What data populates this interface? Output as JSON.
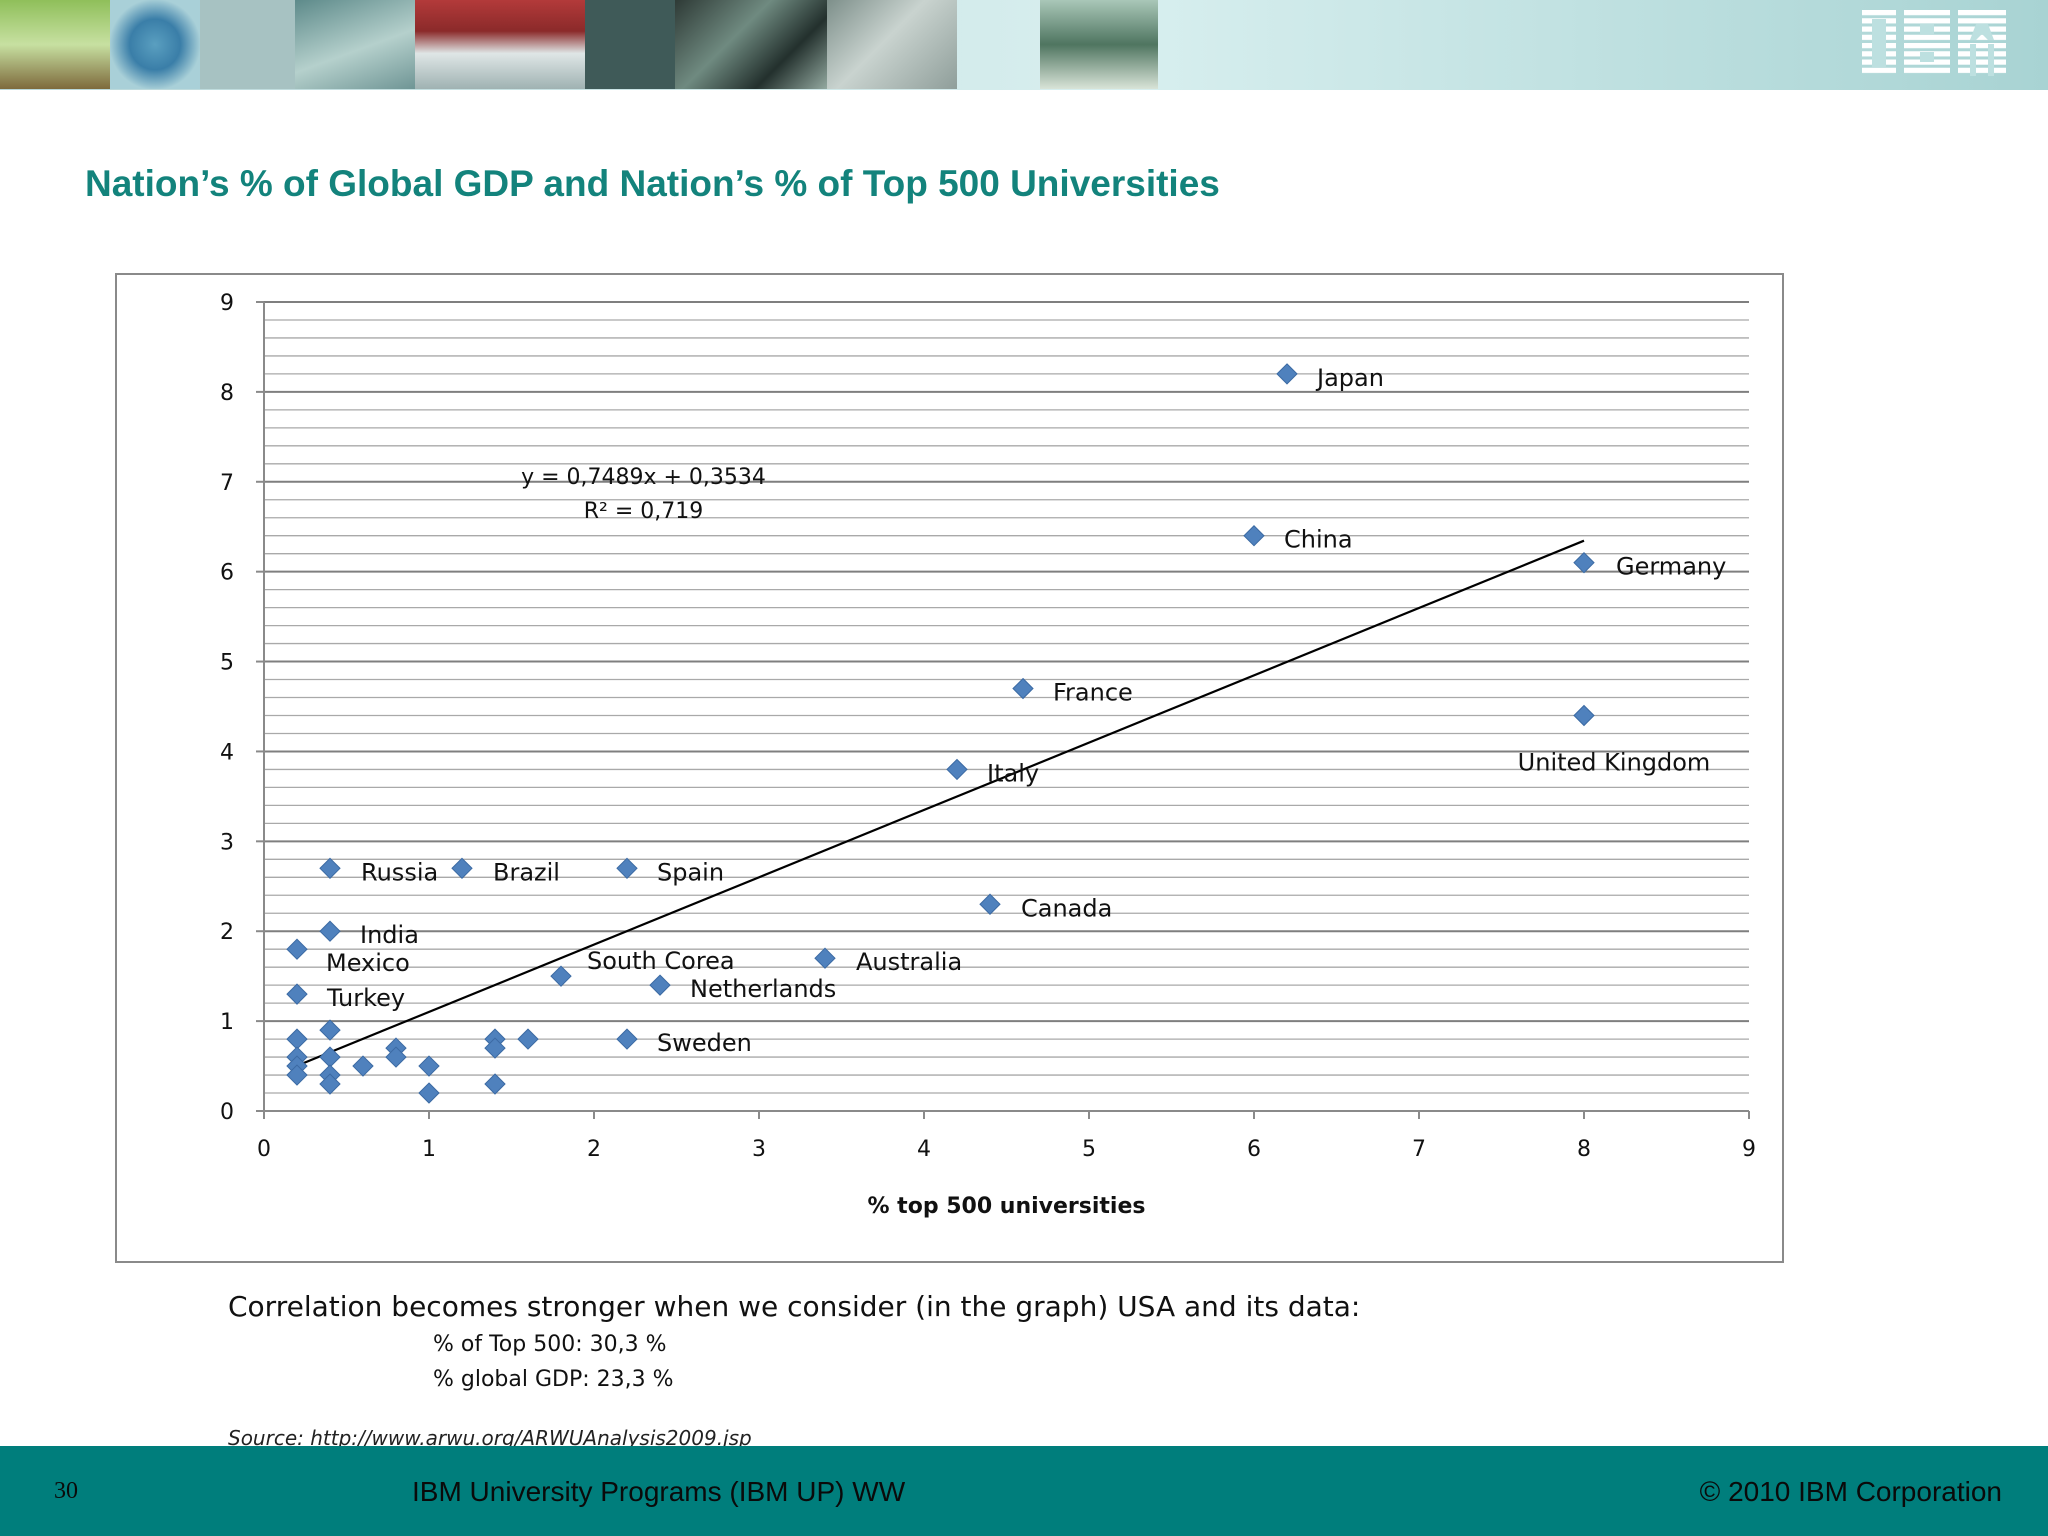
{
  "header": {
    "brand_logo": "IBM",
    "photo_strip": [
      "tree-photo",
      "globe-diagram-photo",
      "cables-photo",
      "house-photo",
      "dark-panel-photo",
      "city-aerial-photo",
      "circuit-map-photo",
      "hand-device-photo"
    ]
  },
  "slide": {
    "title": "Nation’s % of Global GDP and Nation’s % of Top 500 Universities"
  },
  "chart_data": {
    "type": "scatter",
    "xlabel": "% top 500 universities",
    "ylabel": "",
    "xlim": [
      0,
      9
    ],
    "ylim": [
      0,
      9
    ],
    "x_ticks": [
      "0",
      "1",
      "2",
      "3",
      "4",
      "5",
      "6",
      "7",
      "8",
      "9"
    ],
    "y_ticks": [
      "0",
      "1",
      "2",
      "3",
      "4",
      "5",
      "6",
      "7",
      "8",
      "9"
    ],
    "grid": true,
    "minor_grid_step": 0.2,
    "marker_color": "#4f81bd",
    "trendline": {
      "slope": 0.7489,
      "intercept": 0.3534,
      "x_range": [
        0.2,
        8
      ],
      "equation_label": "y = 0,7489x + 0,3534",
      "r2_label": "R² = 0,719"
    },
    "points": [
      {
        "x": 6.2,
        "y": 8.2,
        "label": "Japan"
      },
      {
        "x": 6.0,
        "y": 6.4,
        "label": "China"
      },
      {
        "x": 8.0,
        "y": 6.1,
        "label": "Germany"
      },
      {
        "x": 4.6,
        "y": 4.7,
        "label": "France"
      },
      {
        "x": 8.0,
        "y": 4.4,
        "label": "United Kingdom"
      },
      {
        "x": 4.2,
        "y": 3.8,
        "label": "Italy"
      },
      {
        "x": 0.4,
        "y": 2.7,
        "label": "Russia"
      },
      {
        "x": 1.2,
        "y": 2.7,
        "label": "Brazil"
      },
      {
        "x": 2.2,
        "y": 2.7,
        "label": "Spain"
      },
      {
        "x": 4.4,
        "y": 2.3,
        "label": "Canada"
      },
      {
        "x": 0.4,
        "y": 2.0,
        "label": "India"
      },
      {
        "x": 0.2,
        "y": 1.8,
        "label": "Mexico"
      },
      {
        "x": 1.8,
        "y": 1.5,
        "label": "South Corea"
      },
      {
        "x": 3.4,
        "y": 1.7,
        "label": "Australia"
      },
      {
        "x": 2.4,
        "y": 1.4,
        "label": "Netherlands"
      },
      {
        "x": 0.2,
        "y": 1.3,
        "label": "Turkey"
      },
      {
        "x": 2.2,
        "y": 0.8,
        "label": "Sweden"
      },
      {
        "x": 0.2,
        "y": 0.8
      },
      {
        "x": 0.2,
        "y": 0.6
      },
      {
        "x": 0.2,
        "y": 0.5
      },
      {
        "x": 0.2,
        "y": 0.4
      },
      {
        "x": 0.4,
        "y": 0.9
      },
      {
        "x": 0.4,
        "y": 0.6
      },
      {
        "x": 0.4,
        "y": 0.4
      },
      {
        "x": 0.4,
        "y": 0.3
      },
      {
        "x": 0.6,
        "y": 0.5
      },
      {
        "x": 0.8,
        "y": 0.7
      },
      {
        "x": 0.8,
        "y": 0.6
      },
      {
        "x": 1.0,
        "y": 0.5
      },
      {
        "x": 1.0,
        "y": 0.2
      },
      {
        "x": 1.4,
        "y": 0.8
      },
      {
        "x": 1.4,
        "y": 0.7
      },
      {
        "x": 1.4,
        "y": 0.3
      },
      {
        "x": 1.6,
        "y": 0.8
      }
    ]
  },
  "notes": {
    "main": "Correlation becomes stronger when we consider (in the graph) USA and its data:",
    "top500": "% of Top 500: 30,3 %",
    "gdp": "% global GDP: 23,3 %",
    "source": "Source: http://www.arwu.org/ARWUAnalysis2009.jsp"
  },
  "footer": {
    "page_number": "30",
    "program": "IBM University Programs (IBM UP) WW",
    "copyright": "© 2010 IBM Corporation"
  },
  "colors": {
    "title": "#13837c",
    "footer_bar": "#007e7c",
    "marker": "#4f81bd",
    "trendline": "#000000"
  }
}
